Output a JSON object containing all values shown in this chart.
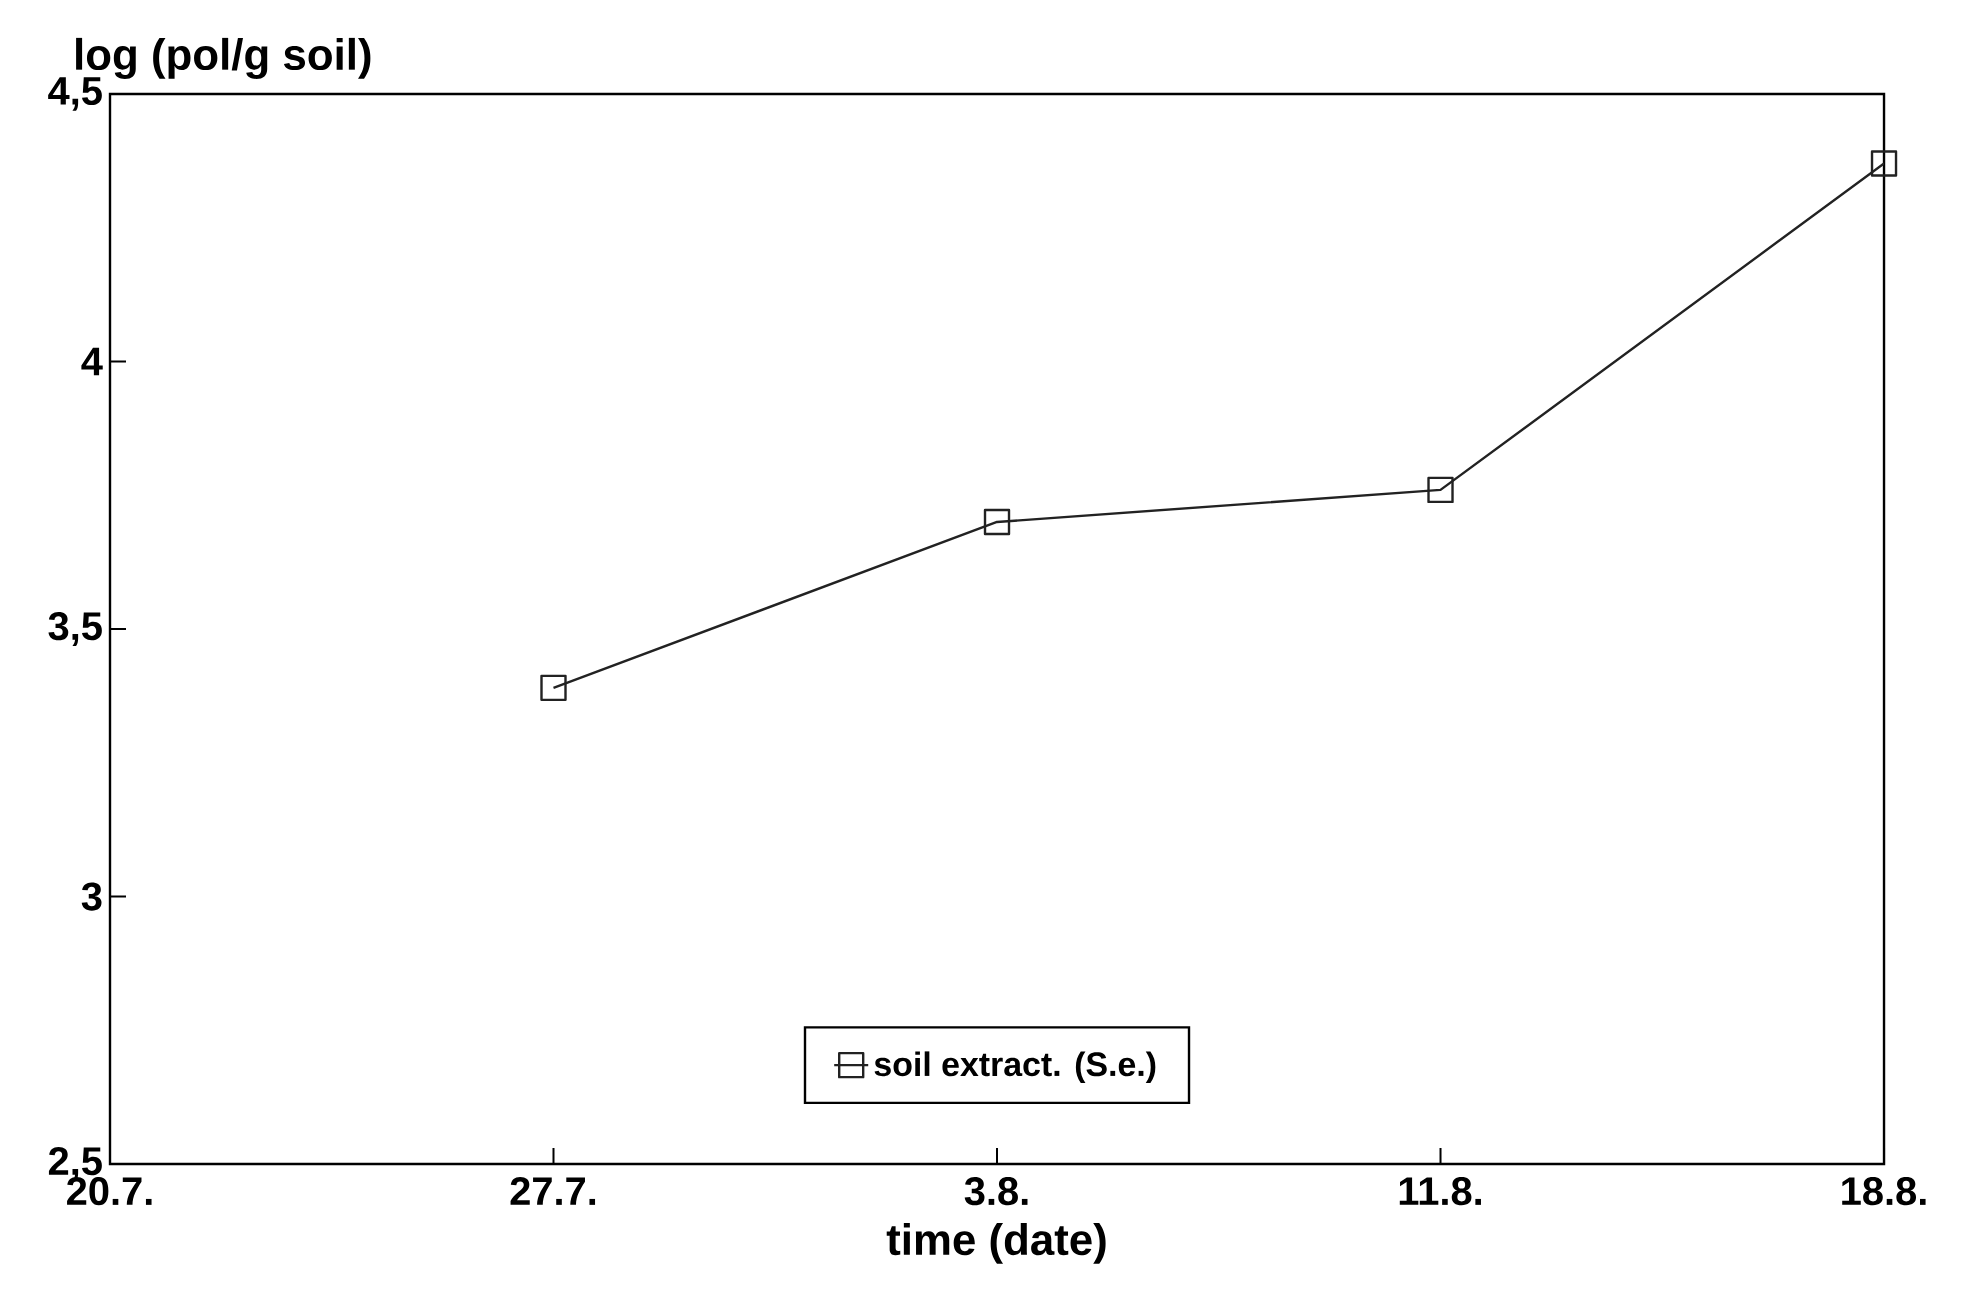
{
  "chart_data": {
    "type": "line",
    "xlabel": "time (date)",
    "ylabel": "log (pol/g soil)",
    "categories": [
      "20.7.",
      "27.7.",
      "3.8.",
      "11.8.",
      "18.8."
    ],
    "series": [
      {
        "name": "soil extract. (S.e.)",
        "color": "#222222",
        "values": [
          null,
          3.39,
          3.7,
          3.76,
          4.37
        ]
      }
    ],
    "ylim": [
      2.5,
      4.5
    ],
    "yticks": [
      {
        "value": 2.5,
        "label": "2,5"
      },
      3,
      {
        "value": 3.5,
        "label": "3,5"
      },
      4,
      {
        "value": 4.5,
        "label": "4,5"
      }
    ],
    "marker": "square",
    "line_style": "solid",
    "legend": "bottom",
    "grid": false
  }
}
